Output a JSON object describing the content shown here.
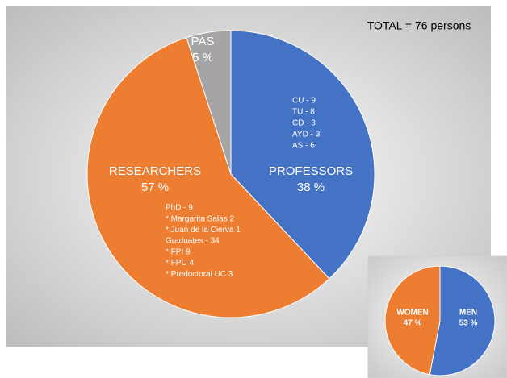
{
  "chart_data": [
    {
      "type": "pie",
      "categories": [
        "PROFESSORS",
        "RESEARCHERS",
        "PAS"
      ],
      "values": [
        38,
        57,
        5
      ],
      "value_labels": [
        "38 %",
        "57 %",
        "5 %"
      ],
      "colors": [
        "#4472c4",
        "#ed7d31",
        "#a5a5a5"
      ],
      "annotation": "TOTAL = 76 persons",
      "professor_details": [
        "CU - 9",
        "TU - 8",
        "CD - 3",
        "AYD - 3",
        "AS - 6"
      ],
      "researcher_details": [
        "PhD - 9",
        "* Margarita Salas 2",
        "* Juan de la Cierva 1",
        "Graduates - 34",
        "* FPI 9",
        "* FPU 4",
        "* Predoctoral UC 3"
      ]
    },
    {
      "type": "pie",
      "categories": [
        "MEN",
        "WOMEN"
      ],
      "values": [
        53,
        47
      ],
      "value_labels": [
        "53 %",
        "47 %"
      ],
      "colors": [
        "#4472c4",
        "#ed7d31"
      ]
    }
  ]
}
